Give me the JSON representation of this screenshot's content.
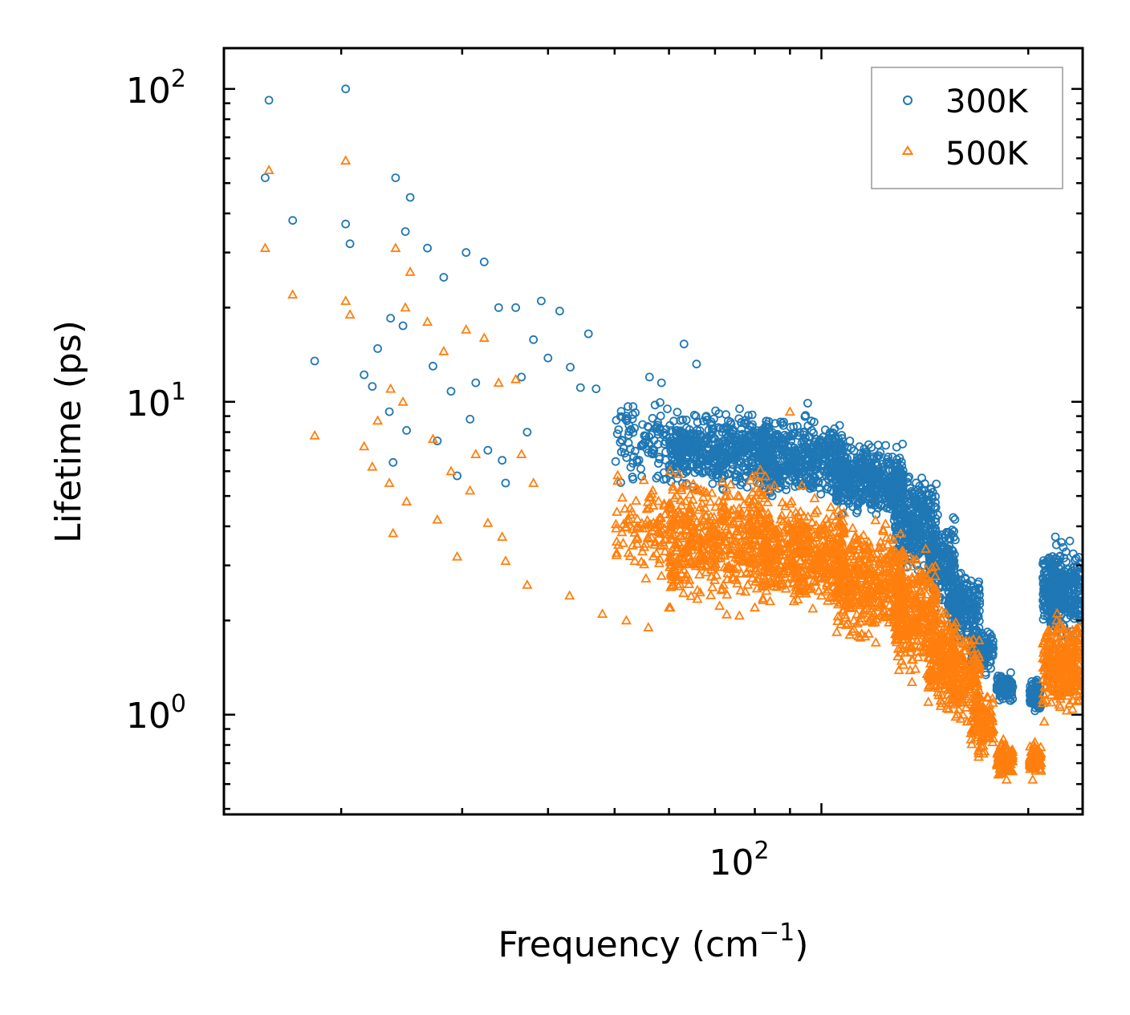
{
  "chart_data": {
    "type": "scatter",
    "title": "",
    "xlabel": "Frequency (cm",
    "xlabel_sup": "−1",
    "xlabel_close": ")",
    "ylabel": "Lifetime (ps)",
    "xscale": "log",
    "yscale": "log",
    "xlim": [
      13.5,
      240
    ],
    "ylim": [
      0.48,
      135
    ],
    "x_ticks": [
      {
        "base": "10",
        "exp": "2",
        "value": 100
      }
    ],
    "y_ticks": [
      {
        "base": "10",
        "exp": "0",
        "value": 1
      },
      {
        "base": "10",
        "exp": "1",
        "value": 10
      },
      {
        "base": "10",
        "exp": "2",
        "value": 100
      }
    ],
    "legend_position": "top-right",
    "series": [
      {
        "name": "300K",
        "marker": "circle",
        "color": "#1f77b4",
        "sample_points": [
          [
            15.5,
            52
          ],
          [
            15.7,
            92
          ],
          [
            17.0,
            38
          ],
          [
            18.3,
            13.5
          ],
          [
            20.3,
            100
          ],
          [
            20.3,
            37
          ],
          [
            20.6,
            32
          ],
          [
            21.6,
            12.2
          ],
          [
            22.2,
            11.2
          ],
          [
            22.6,
            14.8
          ],
          [
            23.5,
            9.3
          ],
          [
            23.6,
            18.5
          ],
          [
            23.8,
            6.4
          ],
          [
            24.0,
            52
          ],
          [
            24.6,
            17.5
          ],
          [
            24.8,
            35
          ],
          [
            24.9,
            8.1
          ],
          [
            25.2,
            45
          ],
          [
            26.7,
            31
          ],
          [
            27.2,
            13
          ],
          [
            27.6,
            7.5
          ],
          [
            28.2,
            25
          ],
          [
            28.9,
            10.8
          ],
          [
            29.5,
            5.8
          ],
          [
            30.4,
            30
          ],
          [
            30.8,
            8.8
          ],
          [
            31.4,
            11.5
          ],
          [
            32.3,
            28
          ],
          [
            32.7,
            7.0
          ],
          [
            33.9,
            20
          ],
          [
            34.3,
            6.5
          ],
          [
            34.7,
            5.5
          ],
          [
            35.9,
            20
          ],
          [
            36.6,
            12
          ],
          [
            37.3,
            8.0
          ],
          [
            38.1,
            15.8
          ],
          [
            39.1,
            21
          ],
          [
            40.0,
            13.8
          ],
          [
            41.6,
            19.5
          ],
          [
            43.1,
            12.9
          ],
          [
            44.6,
            11.1
          ],
          [
            45.8,
            16.5
          ],
          [
            47.0,
            11.0
          ],
          [
            52.0,
            9.0
          ],
          [
            56.2,
            12.0
          ],
          [
            58.5,
            11.5
          ],
          [
            63.1,
            15.3
          ],
          [
            65.8,
            13.2
          ],
          [
            68.0,
            9.0
          ],
          [
            72.0,
            8.2
          ],
          [
            76.0,
            9.5
          ],
          [
            80.0,
            8.0
          ],
          [
            84.0,
            7.6
          ],
          [
            89.0,
            7.0
          ],
          [
            95.5,
            9.9
          ],
          [
            100.0,
            7.2
          ],
          [
            105.0,
            6.3
          ],
          [
            110.0,
            7.5
          ],
          [
            116.0,
            6.8
          ],
          [
            121.0,
            6.0
          ],
          [
            126.0,
            5.0
          ],
          [
            132.0,
            4.9
          ],
          [
            137.0,
            3.8
          ],
          [
            141.0,
            3.0
          ],
          [
            148.0,
            2.7
          ],
          [
            156.0,
            3.1
          ],
          [
            163.0,
            1.8
          ],
          [
            172.0,
            1.5
          ],
          [
            180.0,
            1.2
          ],
          [
            186.0,
            1.3
          ],
          [
            205.0,
            1.05
          ],
          [
            212.0,
            2.3
          ],
          [
            219.0,
            3.7
          ],
          [
            222.0,
            3.2
          ],
          [
            226.0,
            2.5
          ],
          [
            230.0,
            2.6
          ],
          [
            232.0,
            2.2
          ]
        ],
        "clusters": [
          {
            "x_range": [
              50,
              62
            ],
            "y_range": [
              5.0,
              11.0
            ],
            "count": 110
          },
          {
            "x_range": [
              60,
              84
            ],
            "y_range": [
              5.0,
              9.8
            ],
            "count": 520
          },
          {
            "x_range": [
              82,
              108
            ],
            "y_range": [
              4.5,
              9.5
            ],
            "count": 480
          },
          {
            "x_range": [
              105,
              132
            ],
            "y_range": [
              4.0,
              7.8
            ],
            "count": 440
          },
          {
            "x_range": [
              128,
              147
            ],
            "y_range": [
              2.6,
              6.5
            ],
            "count": 320
          },
          {
            "x_range": [
              143,
              157
            ],
            "y_range": [
              2.0,
              4.6
            ],
            "count": 190
          },
          {
            "x_range": [
              153,
              170
            ],
            "y_range": [
              1.6,
              3.1
            ],
            "count": 200
          },
          {
            "x_range": [
              165,
              178
            ],
            "y_range": [
              1.3,
              2.0
            ],
            "count": 110
          },
          {
            "x_range": [
              180,
              190
            ],
            "y_range": [
              1.05,
              1.4
            ],
            "count": 90
          },
          {
            "x_range": [
              201,
              209
            ],
            "y_range": [
              1.0,
              1.35
            ],
            "count": 100
          },
          {
            "x_range": [
              210,
              238
            ],
            "y_range": [
              1.6,
              3.8
            ],
            "count": 330
          }
        ]
      },
      {
        "name": "500K",
        "marker": "triangle",
        "color": "#ff7f0e",
        "sample_points": [
          [
            15.5,
            31
          ],
          [
            15.7,
            55
          ],
          [
            17.0,
            22
          ],
          [
            18.3,
            7.8
          ],
          [
            20.3,
            59
          ],
          [
            20.3,
            21
          ],
          [
            20.6,
            19
          ],
          [
            21.6,
            7.2
          ],
          [
            22.2,
            6.2
          ],
          [
            22.6,
            8.7
          ],
          [
            23.5,
            5.5
          ],
          [
            23.6,
            11
          ],
          [
            23.8,
            3.8
          ],
          [
            24.0,
            31
          ],
          [
            24.6,
            10.0
          ],
          [
            24.8,
            20
          ],
          [
            24.9,
            4.8
          ],
          [
            25.2,
            26
          ],
          [
            26.7,
            18
          ],
          [
            27.2,
            7.6
          ],
          [
            27.6,
            4.2
          ],
          [
            28.2,
            14.5
          ],
          [
            28.9,
            6.0
          ],
          [
            29.5,
            3.2
          ],
          [
            30.4,
            17
          ],
          [
            30.8,
            5.2
          ],
          [
            31.4,
            6.8
          ],
          [
            32.3,
            16
          ],
          [
            32.7,
            4.1
          ],
          [
            33.9,
            11.5
          ],
          [
            34.3,
            3.7
          ],
          [
            34.7,
            3.1
          ],
          [
            35.9,
            11.8
          ],
          [
            36.6,
            6.8
          ],
          [
            37.3,
            2.6
          ],
          [
            38.1,
            5.5
          ],
          [
            43.0,
            2.4
          ],
          [
            48.0,
            2.1
          ],
          [
            52.0,
            2.0
          ],
          [
            56.0,
            1.9
          ],
          [
            60.0,
            2.2
          ],
          [
            66.0,
            2.5
          ],
          [
            72.0,
            2.6
          ],
          [
            80.0,
            2.2
          ],
          [
            90.0,
            9.3
          ],
          [
            100.0,
            2.4
          ],
          [
            110.0,
            1.8
          ],
          [
            120.0,
            1.7
          ],
          [
            128.0,
            1.9
          ],
          [
            137.0,
            1.4
          ],
          [
            144.0,
            1.3
          ],
          [
            153.0,
            1.2
          ],
          [
            163.0,
            0.95
          ],
          [
            172.0,
            0.75
          ],
          [
            186.0,
            0.62
          ],
          [
            203.0,
            0.62
          ],
          [
            211.0,
            0.95
          ],
          [
            220.0,
            2.0
          ],
          [
            226.0,
            1.3
          ]
        ],
        "clusters": [
          {
            "x_range": [
              50,
              62
            ],
            "y_range": [
              2.5,
              6.2
            ],
            "count": 110
          },
          {
            "x_range": [
              60,
              84
            ],
            "y_range": [
              2.0,
              6.5
            ],
            "count": 520
          },
          {
            "x_range": [
              82,
              108
            ],
            "y_range": [
              2.0,
              5.5
            ],
            "count": 480
          },
          {
            "x_range": [
              105,
              132
            ],
            "y_range": [
              1.6,
              4.6
            ],
            "count": 440
          },
          {
            "x_range": [
              128,
              147
            ],
            "y_range": [
              1.2,
              3.6
            ],
            "count": 320
          },
          {
            "x_range": [
              143,
              157
            ],
            "y_range": [
              0.95,
              2.4
            ],
            "count": 190
          },
          {
            "x_range": [
              153,
              170
            ],
            "y_range": [
              0.85,
              2.1
            ],
            "count": 200
          },
          {
            "x_range": [
              165,
              178
            ],
            "y_range": [
              0.72,
              1.2
            ],
            "count": 110
          },
          {
            "x_range": [
              180,
              190
            ],
            "y_range": [
              0.62,
              0.85
            ],
            "count": 90
          },
          {
            "x_range": [
              201,
              209
            ],
            "y_range": [
              0.62,
              0.85
            ],
            "count": 100
          },
          {
            "x_range": [
              210,
              238
            ],
            "y_range": [
              0.95,
              2.2
            ],
            "count": 330
          }
        ]
      }
    ]
  }
}
